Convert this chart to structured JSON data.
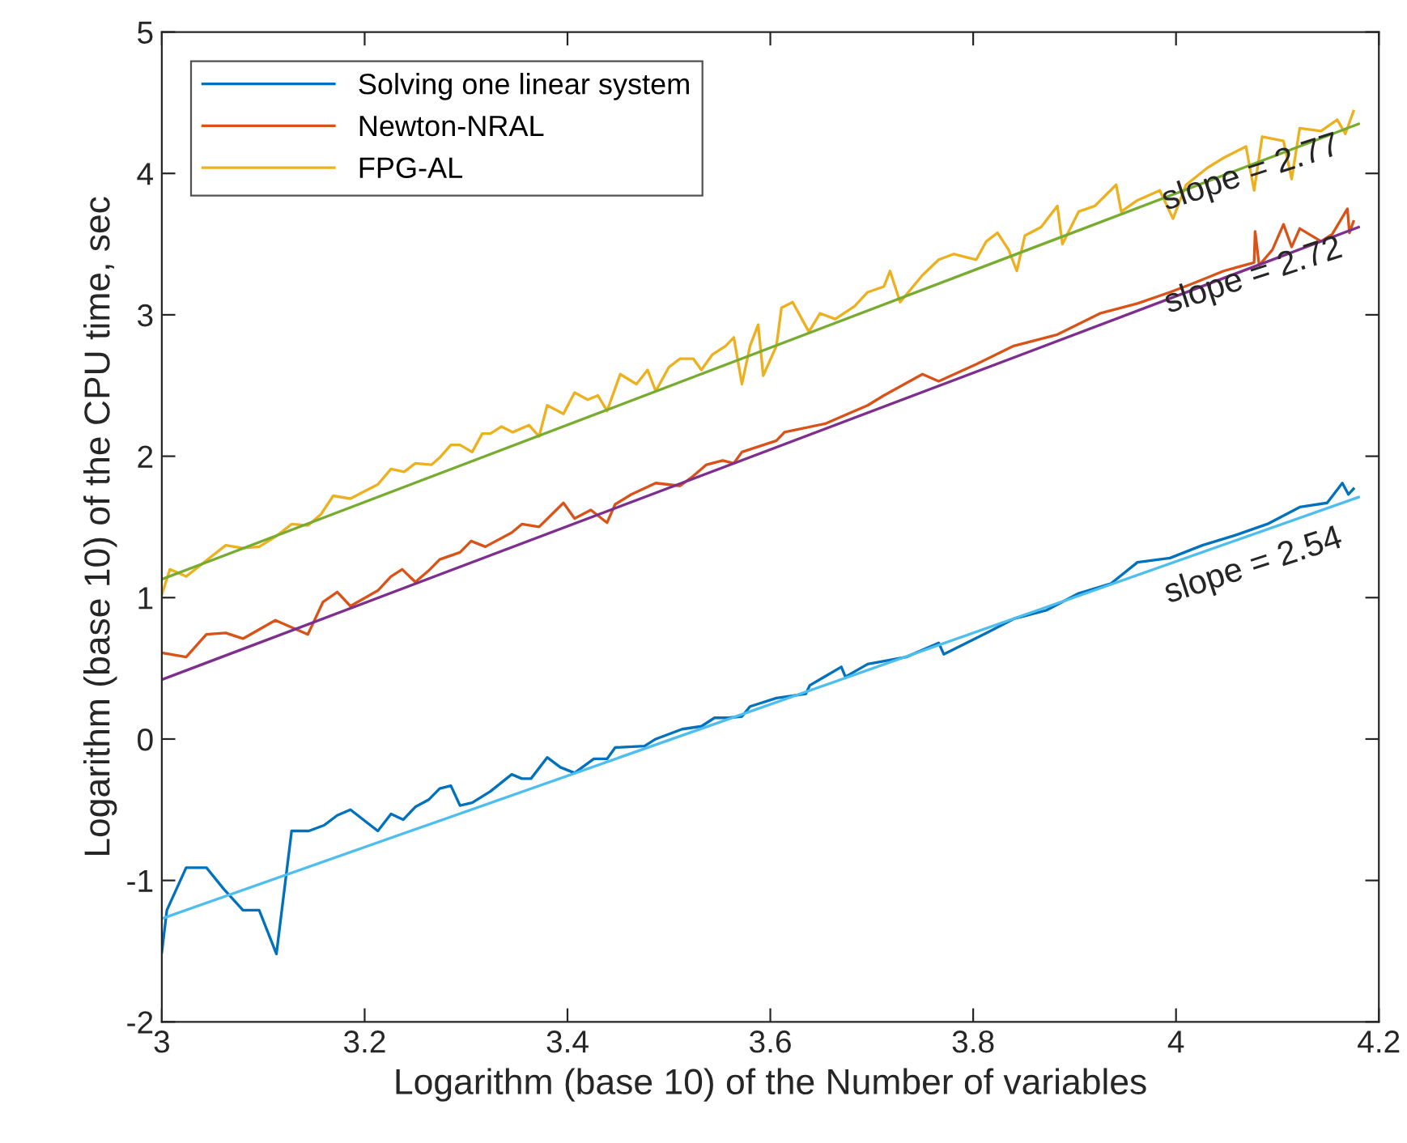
{
  "chart_data": {
    "type": "line",
    "xlabel": "Logarithm (base 10) of the Number of variables",
    "ylabel": "Logarithm (base 10) of the CPU time, sec",
    "xlim": [
      3,
      4.2
    ],
    "ylim": [
      -2,
      5
    ],
    "xticks": [
      3,
      3.2,
      3.4,
      3.6,
      3.8,
      4,
      4.2
    ],
    "yticks": [
      -2,
      -1,
      0,
      1,
      2,
      3,
      4,
      5
    ],
    "grid": false,
    "legend": "top left",
    "marker": "none",
    "line_style": "solid",
    "series": [
      {
        "name": "Solving one linear system",
        "color": "#0072bd",
        "x": [
          3.0,
          3.005,
          3.024,
          3.044,
          3.061,
          3.08,
          3.096,
          3.113,
          3.128,
          3.145,
          3.16,
          3.173,
          3.186,
          3.213,
          3.226,
          3.238,
          3.25,
          3.263,
          3.274,
          3.285,
          3.294,
          3.306,
          3.324,
          3.345,
          3.355,
          3.364,
          3.38,
          3.393,
          3.407,
          3.426,
          3.439,
          3.447,
          3.476,
          3.487,
          3.513,
          3.532,
          3.545,
          3.559,
          3.572,
          3.58,
          3.606,
          3.635,
          3.639,
          3.67,
          3.674,
          3.696,
          3.734,
          3.766,
          3.771,
          3.813,
          3.84,
          3.872,
          3.904,
          3.936,
          3.962,
          3.994,
          4.026,
          4.058,
          4.09,
          4.122,
          4.149,
          4.164,
          4.17,
          4.175
        ],
        "values": [
          -1.51,
          -1.21,
          -0.91,
          -0.91,
          -1.06,
          -1.21,
          -1.21,
          -1.52,
          -0.65,
          -0.65,
          -0.61,
          -0.54,
          -0.5,
          -0.65,
          -0.53,
          -0.57,
          -0.48,
          -0.43,
          -0.35,
          -0.33,
          -0.47,
          -0.45,
          -0.37,
          -0.25,
          -0.28,
          -0.28,
          -0.13,
          -0.2,
          -0.24,
          -0.14,
          -0.14,
          -0.06,
          -0.05,
          0.0,
          0.07,
          0.09,
          0.15,
          0.15,
          0.16,
          0.23,
          0.29,
          0.32,
          0.38,
          0.51,
          0.44,
          0.53,
          0.58,
          0.68,
          0.6,
          0.75,
          0.85,
          0.91,
          1.03,
          1.1,
          1.25,
          1.28,
          1.37,
          1.44,
          1.52,
          1.64,
          1.67,
          1.81,
          1.73,
          1.77
        ]
      },
      {
        "name": "Newton-NRAL",
        "color": "#d95319",
        "x": [
          3.0,
          3.024,
          3.044,
          3.063,
          3.08,
          3.112,
          3.144,
          3.159,
          3.173,
          3.186,
          3.213,
          3.226,
          3.237,
          3.25,
          3.263,
          3.274,
          3.294,
          3.305,
          3.319,
          3.345,
          3.355,
          3.372,
          3.396,
          3.407,
          3.423,
          3.439,
          3.447,
          3.463,
          3.487,
          3.511,
          3.524,
          3.537,
          3.553,
          3.564,
          3.572,
          3.606,
          3.614,
          3.654,
          3.696,
          3.712,
          3.75,
          3.766,
          3.803,
          3.84,
          3.883,
          3.925,
          3.962,
          3.994,
          4.016,
          4.047,
          4.077,
          4.078,
          4.082,
          4.095,
          4.106,
          4.114,
          4.122,
          4.143,
          4.154,
          4.169,
          4.171,
          4.175
        ],
        "values": [
          0.61,
          0.58,
          0.74,
          0.75,
          0.71,
          0.84,
          0.74,
          0.97,
          1.04,
          0.94,
          1.05,
          1.15,
          1.2,
          1.11,
          1.19,
          1.27,
          1.32,
          1.4,
          1.36,
          1.46,
          1.52,
          1.5,
          1.67,
          1.56,
          1.62,
          1.53,
          1.66,
          1.73,
          1.81,
          1.79,
          1.86,
          1.94,
          1.97,
          1.95,
          2.03,
          2.11,
          2.17,
          2.23,
          2.36,
          2.43,
          2.58,
          2.53,
          2.65,
          2.78,
          2.86,
          3.01,
          3.08,
          3.16,
          3.22,
          3.31,
          3.37,
          3.59,
          3.35,
          3.46,
          3.64,
          3.48,
          3.61,
          3.52,
          3.57,
          3.75,
          3.58,
          3.66
        ]
      },
      {
        "name": "FPG-AL",
        "color": "#edb120",
        "x": [
          3.0,
          3.008,
          3.024,
          3.063,
          3.08,
          3.096,
          3.112,
          3.128,
          3.144,
          3.157,
          3.169,
          3.186,
          3.202,
          3.213,
          3.226,
          3.239,
          3.25,
          3.266,
          3.274,
          3.285,
          3.294,
          3.306,
          3.316,
          3.324,
          3.335,
          3.346,
          3.362,
          3.372,
          3.38,
          3.396,
          3.407,
          3.42,
          3.43,
          3.439,
          3.452,
          3.468,
          3.479,
          3.487,
          3.5,
          3.511,
          3.524,
          3.532,
          3.543,
          3.556,
          3.564,
          3.572,
          3.58,
          3.588,
          3.593,
          3.606,
          3.611,
          3.622,
          3.638,
          3.649,
          3.664,
          3.683,
          3.696,
          3.712,
          3.718,
          3.728,
          3.75,
          3.766,
          3.781,
          3.803,
          3.813,
          3.824,
          3.835,
          3.843,
          3.851,
          3.867,
          3.883,
          3.888,
          3.904,
          3.92,
          3.941,
          3.946,
          3.962,
          3.984,
          3.997,
          4.01,
          4.031,
          4.047,
          4.069,
          4.077,
          4.085,
          4.106,
          4.114,
          4.122,
          4.143,
          4.159,
          4.167,
          4.175
        ],
        "values": [
          1.02,
          1.2,
          1.15,
          1.37,
          1.35,
          1.36,
          1.43,
          1.52,
          1.51,
          1.59,
          1.72,
          1.7,
          1.76,
          1.8,
          1.91,
          1.89,
          1.95,
          1.94,
          1.99,
          2.08,
          2.08,
          2.03,
          2.16,
          2.16,
          2.21,
          2.17,
          2.22,
          2.14,
          2.36,
          2.3,
          2.45,
          2.4,
          2.43,
          2.32,
          2.58,
          2.51,
          2.61,
          2.46,
          2.63,
          2.69,
          2.69,
          2.61,
          2.72,
          2.78,
          2.84,
          2.51,
          2.78,
          2.93,
          2.57,
          2.78,
          3.05,
          3.09,
          2.88,
          3.01,
          2.97,
          3.06,
          3.16,
          3.2,
          3.31,
          3.09,
          3.28,
          3.39,
          3.43,
          3.39,
          3.52,
          3.58,
          3.46,
          3.31,
          3.56,
          3.62,
          3.77,
          3.5,
          3.73,
          3.77,
          3.92,
          3.73,
          3.81,
          3.88,
          3.68,
          3.92,
          4.04,
          4.11,
          4.19,
          3.88,
          4.26,
          4.23,
          3.96,
          4.32,
          4.3,
          4.38,
          4.28,
          4.44
        ]
      },
      {
        "color": "#4dbeee",
        "x": [
          3.0,
          4.18
        ],
        "values": [
          -1.27,
          1.71
        ]
      },
      {
        "color": "#7e2f8e",
        "x": [
          3.0,
          4.18
        ],
        "values": [
          0.42,
          3.62
        ]
      },
      {
        "color": "#77ac30",
        "x": [
          3.0,
          4.18
        ],
        "values": [
          1.13,
          4.35
        ]
      }
    ],
    "annotations": [
      "slope = 2.77",
      "slope = 2.72",
      "slope = 2.54"
    ]
  }
}
